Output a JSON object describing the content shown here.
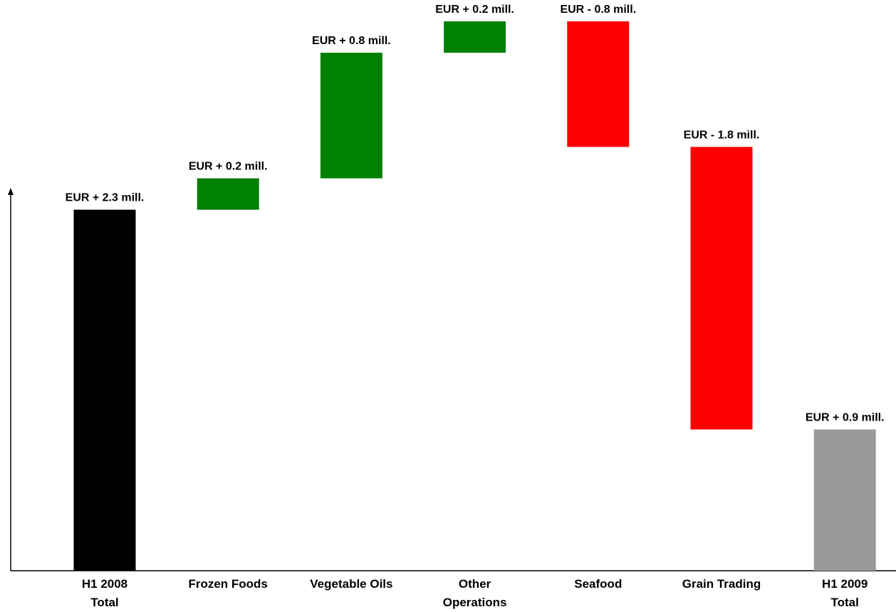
{
  "chart_data": {
    "type": "waterfall",
    "categories": [
      "H1 2008\nTotal",
      "Frozen Foods",
      "Vegetable Oils",
      "Other\nOperations",
      "Seafood",
      "Grain Trading",
      "H1 2009\nTotal"
    ],
    "values": [
      2.3,
      0.2,
      0.8,
      0.2,
      -0.8,
      -1.8,
      0.9
    ],
    "value_labels": [
      "EUR + 2.3 mill.",
      "EUR + 0.2 mill.",
      "EUR + 0.8 mill.",
      "EUR + 0.2 mill.",
      "EUR - 0.8 mill.",
      "EUR - 1.8 mill.",
      "EUR + 0.9 mill."
    ],
    "colors": [
      "#000000",
      "#008000",
      "#008000",
      "#008000",
      "#ff0000",
      "#ff0000",
      "#999999"
    ],
    "ylim": [
      0,
      3.5
    ]
  }
}
